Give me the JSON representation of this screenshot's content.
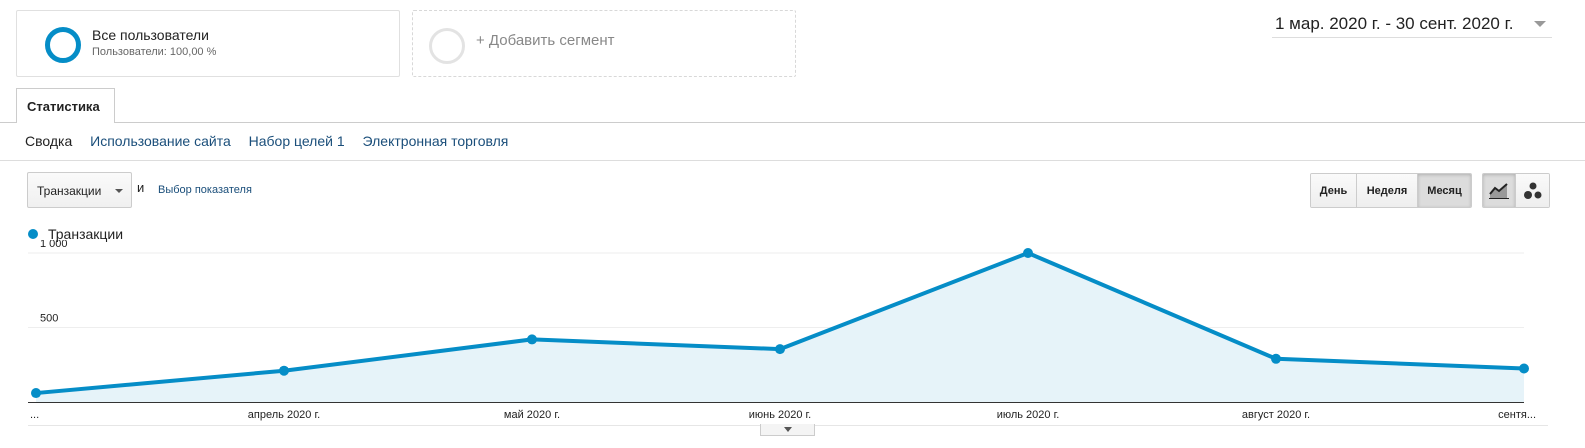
{
  "segments": {
    "all_users": {
      "title": "Все пользователи",
      "subtitle": "Пользователи: 100,00 %"
    },
    "add_segment_label": "+ Добавить сегмент"
  },
  "date_range": {
    "text": "1 мар. 2020 г. - 30 сент. 2020 г."
  },
  "tabs": [
    {
      "label": "Статистика",
      "active": true
    }
  ],
  "subnav": [
    {
      "label": "Сводка",
      "active": true
    },
    {
      "label": "Использование сайта",
      "active": false
    },
    {
      "label": "Набор целей 1",
      "active": false
    },
    {
      "label": "Электронная торговля",
      "active": false
    }
  ],
  "metric_controls": {
    "selected_metric": "Транзакции",
    "and_word": "и",
    "pick_metric_label": "Выбор показателя"
  },
  "period_buttons": [
    {
      "label": "День",
      "active": false
    },
    {
      "label": "Неделя",
      "active": false
    },
    {
      "label": "Месяц",
      "active": true
    }
  ],
  "view_buttons": [
    {
      "icon": "line-chart-icon",
      "active": true
    },
    {
      "icon": "motion-chart-icon",
      "active": false
    }
  ],
  "legend": {
    "label": "Транзакции",
    "color": "#058dc7"
  },
  "colors": {
    "series": "#058dc7",
    "area_fill": "#e6f3f9",
    "accent_link": "#1a4e7a"
  },
  "chart_data": {
    "type": "area",
    "categories": [
      "...",
      "апрель 2020 г.",
      "май 2020 г.",
      "июнь 2020 г.",
      "июль 2020 г.",
      "август 2020 г.",
      "сентя..."
    ],
    "series": [
      {
        "name": "Транзакции",
        "values": [
          60,
          210,
          420,
          355,
          1000,
          290,
          225
        ]
      }
    ],
    "yticks": [
      {
        "value": 500,
        "label": "500"
      },
      {
        "value": 1000,
        "label": "1 000"
      }
    ],
    "ylim": [
      0,
      1000
    ],
    "grid": true,
    "legend": "top-left"
  }
}
